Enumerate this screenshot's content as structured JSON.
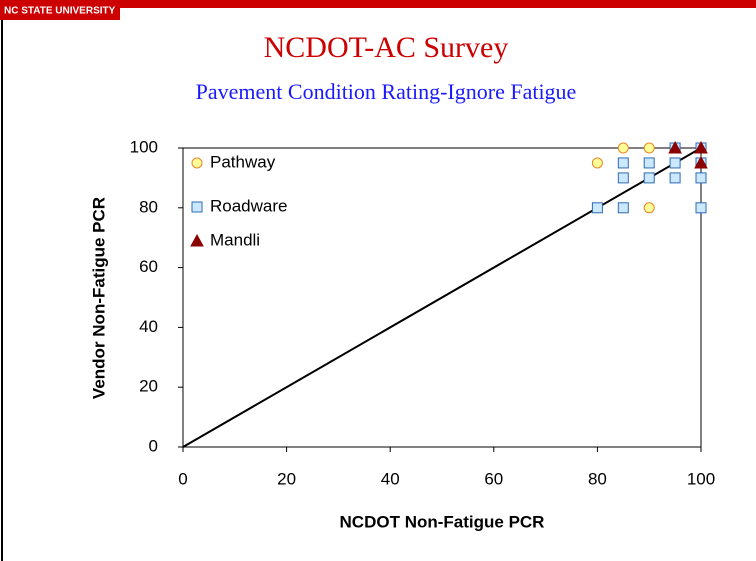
{
  "header": {
    "brand": "NC STATE UNIVERSITY"
  },
  "chart_data": {
    "type": "scatter",
    "title": "NCDOT-AC Survey",
    "subtitle": "Pavement Condition Rating-Ignore Fatigue",
    "x_label": "NCDOT Non-Fatigue PCR",
    "y_label": "Vendor Non-Fatigue PCR",
    "xlim": [
      0,
      100
    ],
    "ylim": [
      0,
      100
    ],
    "xticks": [
      0,
      20,
      40,
      60,
      80,
      100
    ],
    "yticks": [
      0,
      20,
      40,
      60,
      80,
      100
    ],
    "grid": false,
    "legend": "upper left",
    "line_of_equality": {
      "x": [
        0,
        100
      ],
      "values": [
        0,
        100
      ],
      "color": "#000000"
    },
    "series": [
      {
        "name": "Pathway",
        "marker": "circle",
        "color": "#ffff99",
        "edge": "#e8862a",
        "x": [
          80,
          85,
          90,
          95,
          100,
          90
        ],
        "values": [
          95,
          100,
          100,
          100,
          100,
          80
        ]
      },
      {
        "name": "Roadware",
        "marker": "square",
        "color": "#cce8ff",
        "edge": "#2c6bb5",
        "x": [
          80,
          85,
          85,
          85,
          90,
          90,
          95,
          95,
          95,
          100,
          100,
          100,
          100
        ],
        "values": [
          80,
          80,
          90,
          95,
          90,
          95,
          90,
          95,
          100,
          90,
          80,
          100,
          95
        ]
      },
      {
        "name": "Mandli",
        "marker": "triangle",
        "color": "#8b0000",
        "edge": "#8b0000",
        "x": [
          95,
          100,
          100
        ],
        "values": [
          100,
          100,
          95
        ]
      }
    ]
  }
}
